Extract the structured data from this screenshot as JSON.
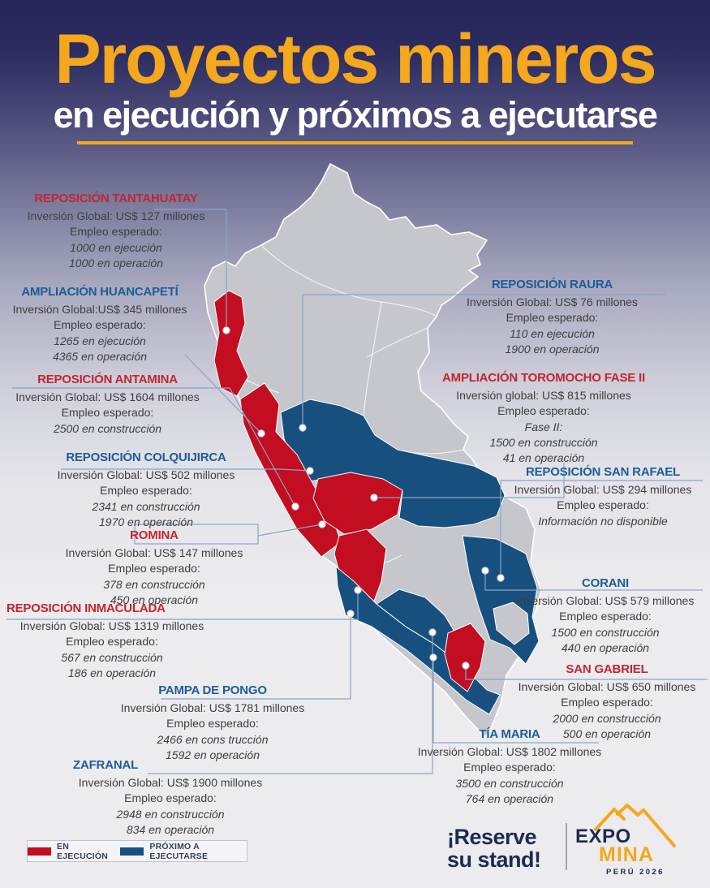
{
  "poster": {
    "title": "Proyectos mineros",
    "subtitle": "en ejecución y próximos a ejecutarse"
  },
  "projects": [
    {
      "id": "tantahuatay",
      "name": "REPOSICIÓN TANTAHUATAY",
      "status": "en-ejecucion",
      "investment": "Inversión Global:  US$ 127 millones",
      "employment_label": "Empleo esperado:",
      "employment": [
        "1000 en ejecución",
        "1000 en operación"
      ]
    },
    {
      "id": "huancapeti",
      "name": "AMPLIACIÓN HUANCAPETÍ",
      "status": "proximo",
      "investment": "Inversión Global:US$ 345 millones",
      "employment_label": "Empleo esperado:",
      "employment": [
        "1265 en ejecución",
        "4365 en operación"
      ]
    },
    {
      "id": "antamina",
      "name": "REPOSICIÓN ANTAMINA",
      "status": "en-ejecucion",
      "investment": "Inversión Global: US$ 1604 millones",
      "employment_label": "Empleo esperado:",
      "employment": [
        "2500 en construcción"
      ]
    },
    {
      "id": "colquijirca",
      "name": "REPOSICIÓN COLQUIJIRCA",
      "status": "proximo",
      "investment": "Inversión Global: US$ 502 millones",
      "employment_label": "Empleo esperado:",
      "employment": [
        "2341 en construcción",
        "1970 en operación"
      ]
    },
    {
      "id": "romina",
      "name": "ROMINA",
      "status": "en-ejecucion",
      "investment": "Inversión Global: US$ 147 millones",
      "employment_label": "Empleo esperado:",
      "employment": [
        "378 en construcción",
        "450 en operación"
      ]
    },
    {
      "id": "inmaculada",
      "name": "REPOSICIÓN INMACULADA",
      "status": "en-ejecucion",
      "investment": "Inversión Global: US$ 1319 millones",
      "employment_label": "Empleo esperado:",
      "employment": [
        "567 en construcción",
        "186 en operación"
      ]
    },
    {
      "id": "pampa",
      "name": "PAMPA DE PONGO",
      "status": "proximo",
      "investment": "Inversión Global: US$ 1781 millones",
      "employment_label": "Empleo esperado:",
      "employment": [
        "2466 en cons trucción",
        "1592 en operación"
      ]
    },
    {
      "id": "zafranal",
      "name": "ZAFRANAL",
      "status": "proximo",
      "investment": "Inversión Global: US$ 1900 millones",
      "employment_label": "Empleo esperado:",
      "employment": [
        "2948 en construcción",
        "834 en operación"
      ]
    },
    {
      "id": "raura",
      "name": "REPOSICIÓN RAURA",
      "status": "proximo",
      "investment": "Inversión Global:  US$ 76 millones",
      "employment_label": "Empleo esperado:",
      "employment": [
        "110 en ejecución",
        "1900 en operación"
      ]
    },
    {
      "id": "toromocho",
      "name": "AMPLIACIÓN TOROMOCHO FASE II",
      "status": "en-ejecucion",
      "investment": "Inversión global:  US$ 815 millones",
      "employment_label": "Empleo esperado:",
      "employment": [
        "Fase II:",
        "1500 en construcción",
        "41 en operación"
      ]
    },
    {
      "id": "sanrafael",
      "name": "REPOSICIÓN SAN RAFAEL",
      "status": "proximo",
      "investment": "Inversión Global: US$ 294 millones",
      "employment_label": "Empleo esperado:",
      "employment": [
        "Información no disponible"
      ]
    },
    {
      "id": "corani",
      "name": "CORANI",
      "status": "proximo",
      "investment": "Inversión Global: US$ 579 millones",
      "employment_label": "Empleo esperado:",
      "employment": [
        "1500 en construcción",
        "440 en operación"
      ]
    },
    {
      "id": "sangabriel",
      "name": "SAN GABRIEL",
      "status": "en-ejecucion",
      "investment": "Inversión Global: US$ 650 millones",
      "employment_label": "Empleo esperado:",
      "employment": [
        "2000 en construcción",
        "500 en operación"
      ]
    },
    {
      "id": "tiamaria",
      "name": "TÍA MARIA",
      "status": "proximo",
      "investment": "Inversión Global: US$ 1802 millones",
      "employment_label": "Empleo esperado:",
      "employment": [
        "3500 en construcción",
        "764 en operación"
      ]
    }
  ],
  "legend": {
    "items": [
      {
        "label": "EN EJECUCIÓN",
        "color": "#C20E20"
      },
      {
        "label": "PRÓXIMO A EJECUTARSE",
        "color": "#17507F"
      }
    ]
  },
  "footer": {
    "cta_line1": "¡Reserve",
    "cta_line2": "su stand!",
    "brand": {
      "expo": "EXPO",
      "mina": "MINA",
      "peru": "PERÚ 2026"
    }
  },
  "colors": {
    "accent_yellow": "#F5A71D",
    "status_red": "#C20E20",
    "status_blue": "#17507F",
    "title_red": "#C22531",
    "title_blue": "#1E5C99",
    "map_gray": "#C5C7CC",
    "navy": "#1D2A52"
  }
}
